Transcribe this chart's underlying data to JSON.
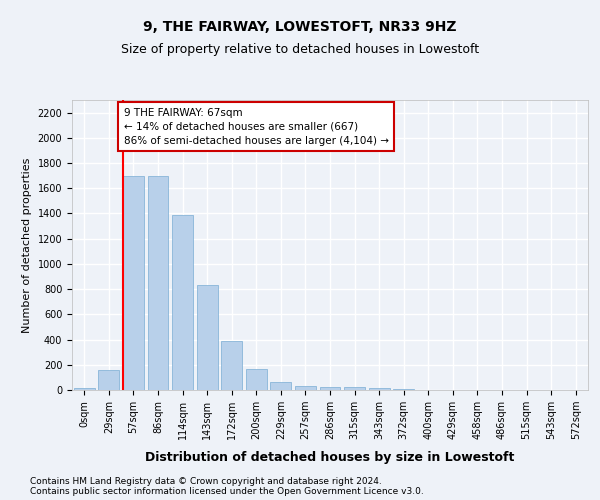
{
  "title": "9, THE FAIRWAY, LOWESTOFT, NR33 9HZ",
  "subtitle": "Size of property relative to detached houses in Lowestoft",
  "xlabel": "Distribution of detached houses by size in Lowestoft",
  "ylabel": "Number of detached properties",
  "bar_labels": [
    "0sqm",
    "29sqm",
    "57sqm",
    "86sqm",
    "114sqm",
    "143sqm",
    "172sqm",
    "200sqm",
    "229sqm",
    "257sqm",
    "286sqm",
    "315sqm",
    "343sqm",
    "372sqm",
    "400sqm",
    "429sqm",
    "458sqm",
    "486sqm",
    "515sqm",
    "543sqm",
    "572sqm"
  ],
  "bar_values": [
    15,
    155,
    1700,
    1700,
    1390,
    835,
    390,
    165,
    65,
    35,
    25,
    25,
    15,
    10,
    0,
    0,
    0,
    0,
    0,
    0,
    0
  ],
  "bar_color": "#b8d0ea",
  "bar_edge_color": "#7aadd4",
  "annotation_text": "9 THE FAIRWAY: 67sqm\n← 14% of detached houses are smaller (667)\n86% of semi-detached houses are larger (4,104) →",
  "annotation_box_color": "#ffffff",
  "annotation_box_edge_color": "#cc0000",
  "red_line_bin": 2,
  "ylim": [
    0,
    2300
  ],
  "yticks": [
    0,
    200,
    400,
    600,
    800,
    1000,
    1200,
    1400,
    1600,
    1800,
    2000,
    2200
  ],
  "footer_line1": "Contains HM Land Registry data © Crown copyright and database right 2024.",
  "footer_line2": "Contains public sector information licensed under the Open Government Licence v3.0.",
  "bg_color": "#eef2f8",
  "plot_bg_color": "#eef2f8",
  "grid_color": "#ffffff",
  "title_fontsize": 10,
  "subtitle_fontsize": 9,
  "ylabel_fontsize": 8,
  "xlabel_fontsize": 9,
  "tick_fontsize": 7,
  "annotation_fontsize": 7.5,
  "footer_fontsize": 6.5
}
